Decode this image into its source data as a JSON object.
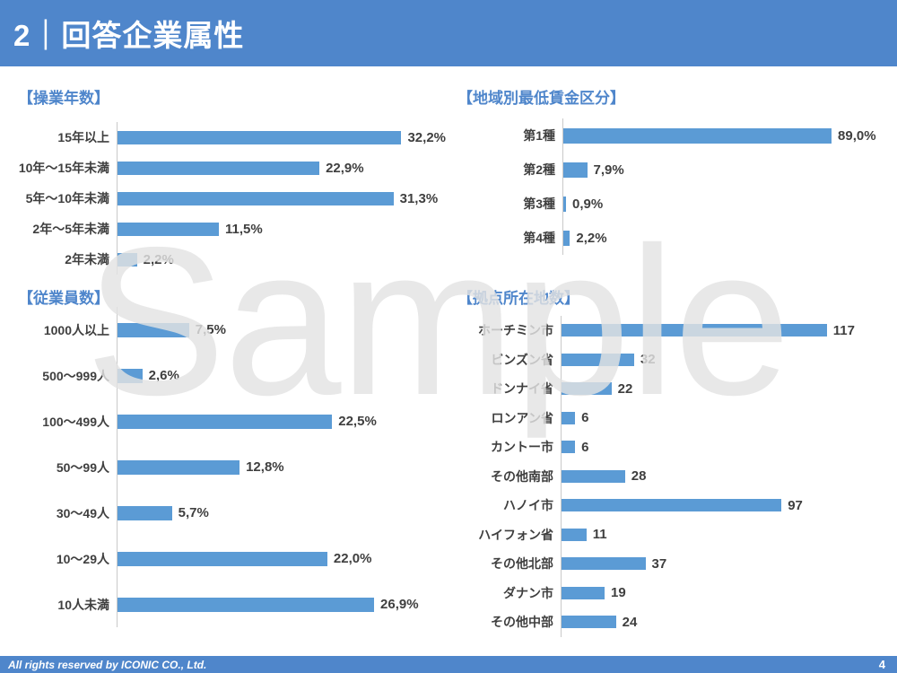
{
  "header": {
    "title": "2｜回答企業属性"
  },
  "footer": {
    "copyright": "All rights reserved by ICONIC CO., Ltd.",
    "page_number": "4"
  },
  "watermark": {
    "text": "Sample"
  },
  "colors": {
    "accent_blue": "#4f86cb",
    "bar_blue": "#5b9bd5",
    "label_dark": "#3f3f3f",
    "axis_gray": "#c9c9c9",
    "watermark_gray": "#e3e3e3"
  },
  "chart_data": [
    {
      "type": "bar",
      "orientation": "horizontal",
      "title": "【操業年数】",
      "categories": [
        "15年以上",
        "10年～15年未満",
        "5年～10年未満",
        "2年～5年未満",
        "2年未満"
      ],
      "values": [
        32.2,
        22.9,
        31.3,
        11.5,
        2.2
      ],
      "value_labels": [
        "32,2%",
        "22,9%",
        "31,3%",
        "11,5%",
        "2,2%"
      ],
      "xlabel": "",
      "ylabel": "",
      "xlim": [
        0,
        35
      ],
      "grid": false,
      "legend": false
    },
    {
      "type": "bar",
      "orientation": "horizontal",
      "title": "【地域別最低賃金区分】",
      "categories": [
        "第1種",
        "第2種",
        "第3種",
        "第4種"
      ],
      "values": [
        89.0,
        7.9,
        0.9,
        2.2
      ],
      "value_labels": [
        "89,0%",
        "7,9%",
        "0,9%",
        "2,2%"
      ],
      "xlabel": "",
      "ylabel": "",
      "xlim": [
        0,
        100
      ],
      "grid": false,
      "legend": false
    },
    {
      "type": "bar",
      "orientation": "horizontal",
      "title": "【従業員数】",
      "categories": [
        "1000人以上",
        "500～999人",
        "100～499人",
        "50～99人",
        "30～49人",
        "10～29人",
        "10人未満"
      ],
      "values": [
        7.5,
        2.6,
        22.5,
        12.8,
        5.7,
        22.0,
        26.9
      ],
      "value_labels": [
        "7,5%",
        "2,6%",
        "22,5%",
        "12,8%",
        "5,7%",
        "22,0%",
        "26,9%"
      ],
      "xlabel": "",
      "ylabel": "",
      "xlim": [
        0,
        30
      ],
      "grid": false,
      "legend": false
    },
    {
      "type": "bar",
      "orientation": "horizontal",
      "title": "【拠点所在地数】",
      "categories": [
        "ホーチミン市",
        "ビンズン省",
        "ドンナイ省",
        "ロンアン省",
        "カントー市",
        "その他南部",
        "ハノイ市",
        "ハイフォン省",
        "その他北部",
        "ダナン市",
        "その他中部"
      ],
      "values": [
        117,
        32,
        22,
        6,
        6,
        28,
        97,
        11,
        37,
        19,
        24
      ],
      "value_labels": [
        "117",
        "32",
        "22",
        "6",
        "6",
        "28",
        "97",
        "11",
        "37",
        "19",
        "24"
      ],
      "xlabel": "",
      "ylabel": "",
      "xlim": [
        0,
        125
      ],
      "grid": false,
      "legend": false
    }
  ]
}
